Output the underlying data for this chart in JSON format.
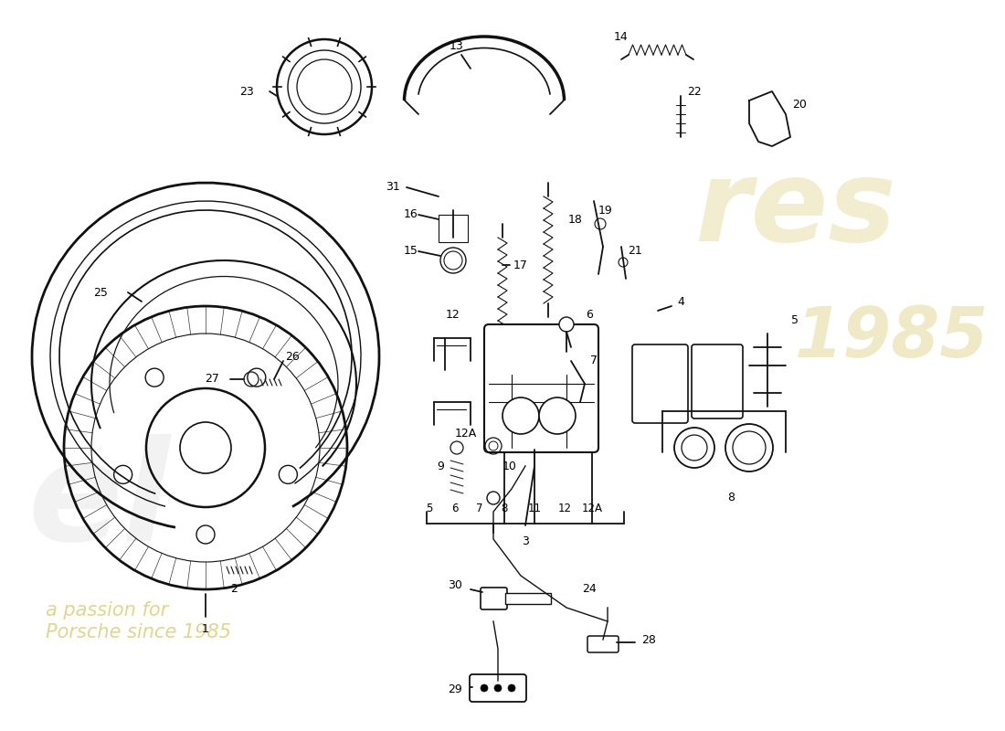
{
  "bg_color": "#ffffff",
  "line_color": "#111111",
  "fig_width": 11.0,
  "fig_height": 8.0,
  "dpi": 100,
  "xlim": [
    0,
    1100
  ],
  "ylim": [
    0,
    800
  ]
}
